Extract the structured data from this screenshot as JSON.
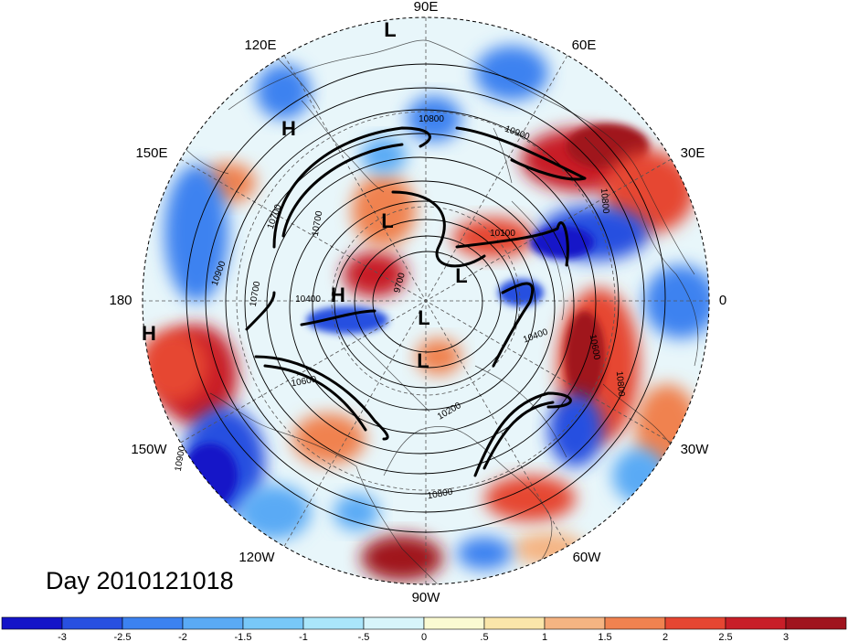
{
  "title": "Day 2010121018",
  "longitude_labels": [
    "90E",
    "60E",
    "30E",
    "0",
    "30W",
    "60W",
    "90W",
    "120W",
    "150W",
    "180",
    "150E",
    "120E"
  ],
  "pressure_systems": [
    "L",
    "H",
    "H",
    "L",
    "H",
    "L",
    "L",
    "L"
  ],
  "contour_labels": [
    "10800",
    "10900",
    "10800",
    "10700",
    "10700",
    "10900",
    "10700",
    "10400",
    "10600",
    "10400",
    "10600",
    "10800",
    "10200",
    "10800",
    "10900",
    "10100",
    "9700"
  ],
  "colorbar": {
    "ticks": [
      "-3",
      "-2.5",
      "-2",
      "-1.5",
      "-1",
      "-.5",
      "0",
      ".5",
      "1",
      "1.5",
      "2",
      "2.5",
      "3"
    ],
    "colors": [
      "#1414c8",
      "#2850e0",
      "#3c82f0",
      "#5aaaf5",
      "#78c8f8",
      "#aae6fa",
      "#d7f5fa",
      "#fafad2",
      "#fae6aa",
      "#f5b482",
      "#f08250",
      "#e64632",
      "#c81e28",
      "#a0141e"
    ]
  },
  "colors": {
    "cold": "#2850e0",
    "warm": "#e64632"
  }
}
